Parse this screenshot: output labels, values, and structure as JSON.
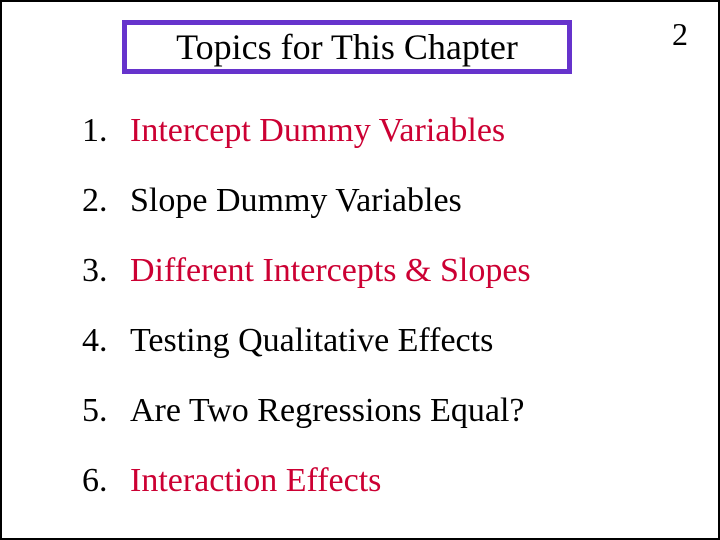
{
  "page_number": "2",
  "title": "Topics for This Chapter",
  "title_box_border_color": "#6633cc",
  "title_box_border_width": 5,
  "colors": {
    "red": "#cc0033",
    "black": "#000000",
    "purple": "#6633cc",
    "background": "#ffffff"
  },
  "typography": {
    "font_family": "Times New Roman",
    "title_fontsize": 36,
    "list_fontsize": 34,
    "page_number_fontsize": 32
  },
  "items": [
    {
      "number": "1.",
      "text": "Intercept Dummy Variables",
      "color": "red"
    },
    {
      "number": "2.",
      "text": "Slope Dummy Variables",
      "color": "black"
    },
    {
      "number": "3.",
      "text": "Different Intercepts & Slopes",
      "color": "red"
    },
    {
      "number": "4.",
      "text": "Testing Qualitative Effects",
      "color": "black"
    },
    {
      "number": "5.",
      "text": "Are Two Regressions Equal?",
      "color": "black"
    },
    {
      "number": "6.",
      "text": "Interaction Effects",
      "color": "red"
    }
  ]
}
